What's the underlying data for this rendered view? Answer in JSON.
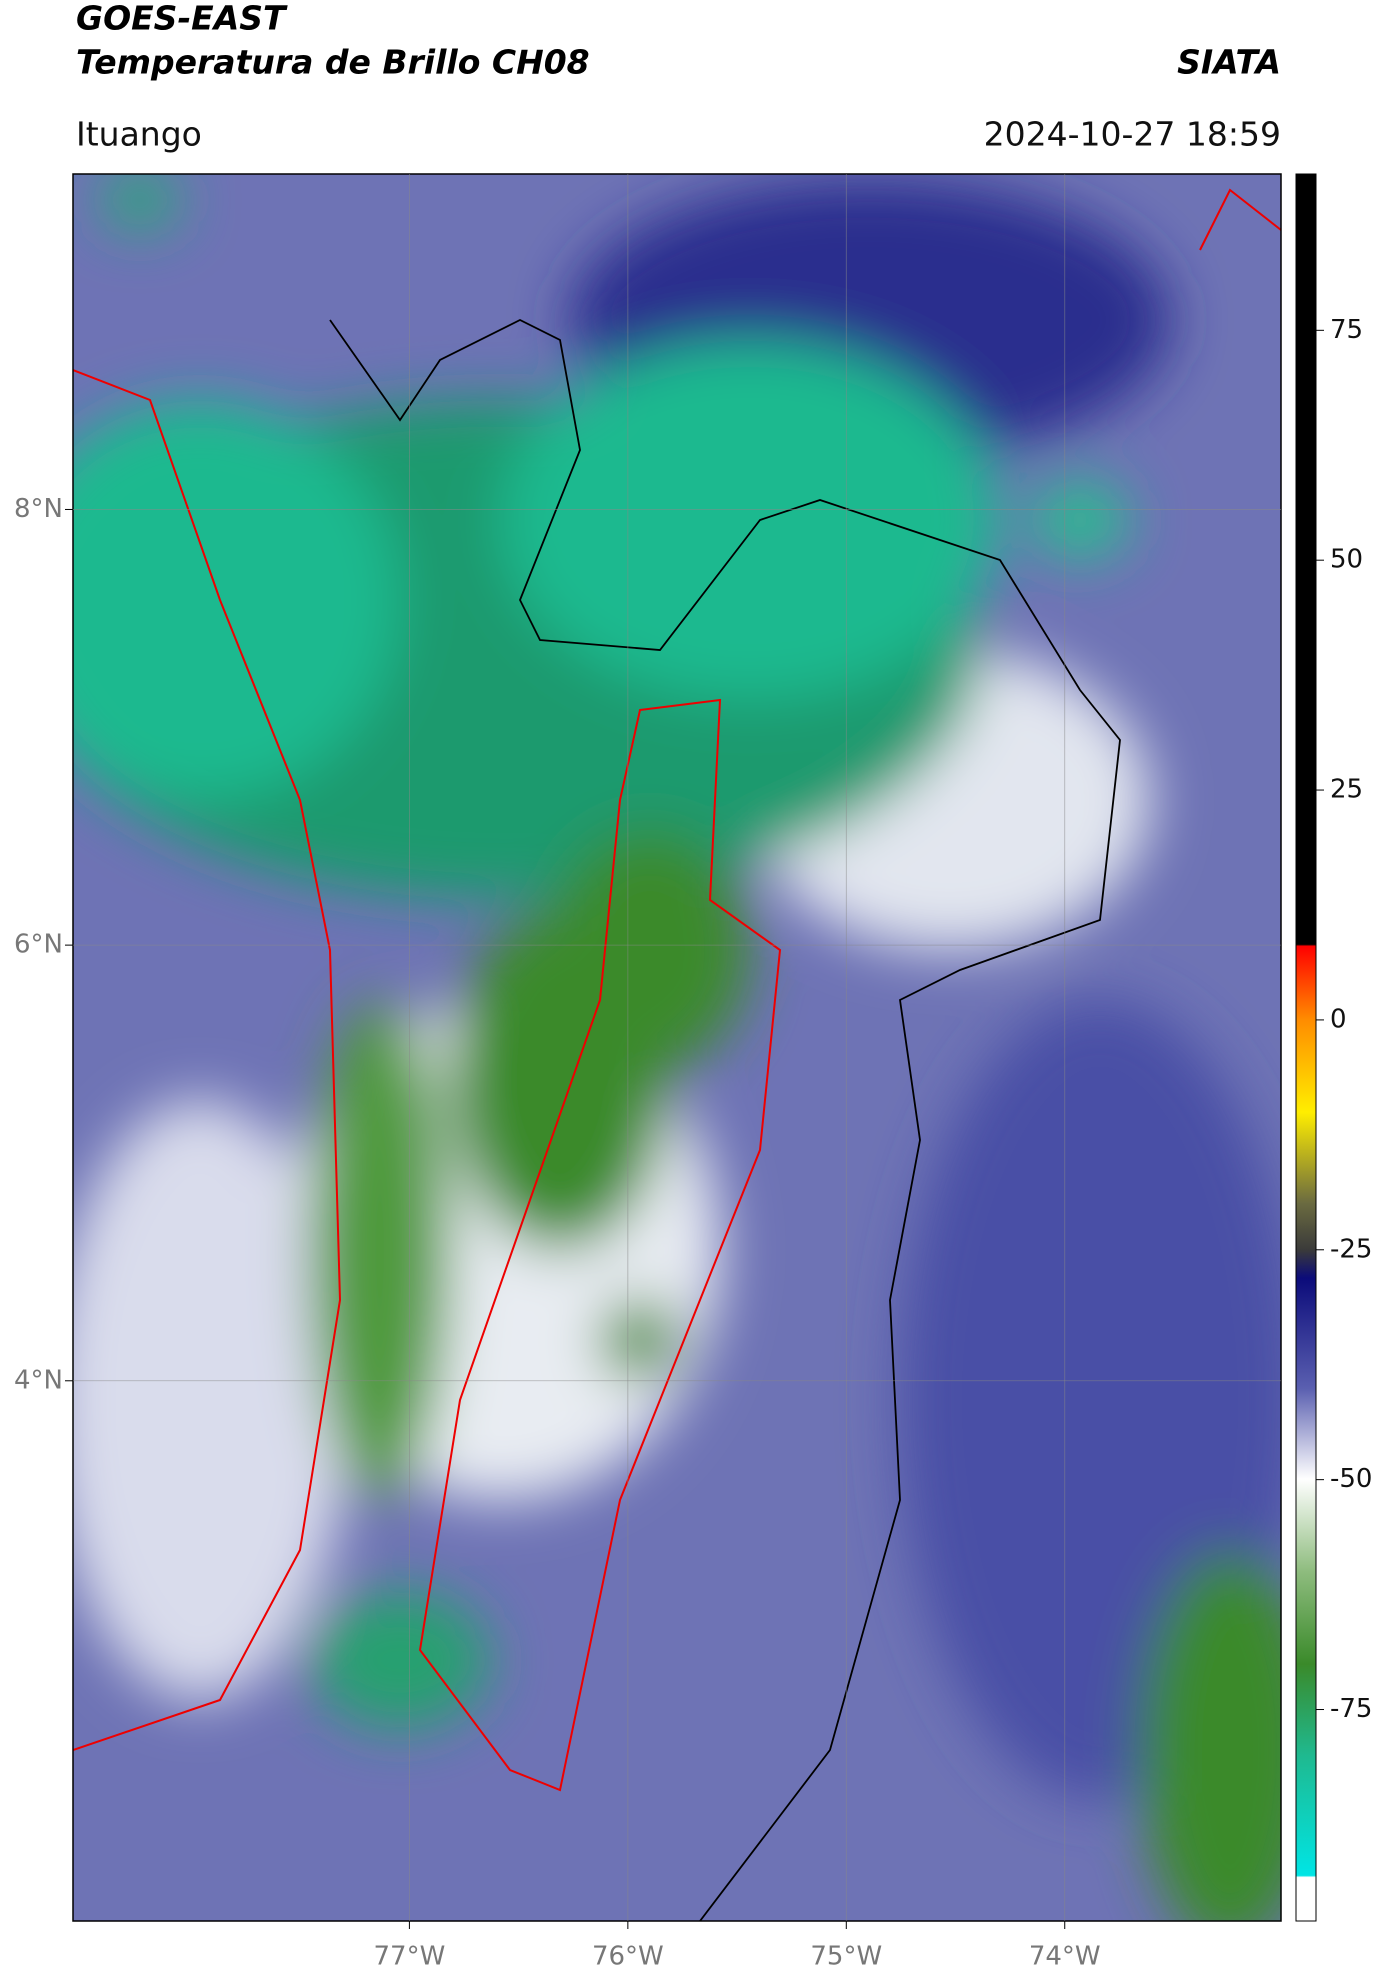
{
  "header": {
    "title": "GOES-EAST",
    "subtitle": "Temperatura de Brillo CH08",
    "source": "SIATA",
    "region": "Ituango",
    "datetime": "2024-10-27 18:59"
  },
  "map": {
    "lonlim": [
      -78.54,
      -73.01
    ],
    "latlim": [
      1.52,
      9.54
    ],
    "lonticks": [
      {
        "value": -77,
        "label": "77°W"
      },
      {
        "value": -76,
        "label": "76°W"
      },
      {
        "value": -75,
        "label": "75°W"
      },
      {
        "value": -74,
        "label": "74°W"
      }
    ],
    "latticks": [
      {
        "value": 8,
        "label": "8°N"
      },
      {
        "value": 6,
        "label": "6°N"
      },
      {
        "value": 4,
        "label": "4°N"
      }
    ]
  },
  "colorbar": {
    "lim": [
      -98,
      92
    ],
    "ticks": [
      75,
      50,
      25,
      0,
      -25,
      -50,
      -75
    ]
  }
}
